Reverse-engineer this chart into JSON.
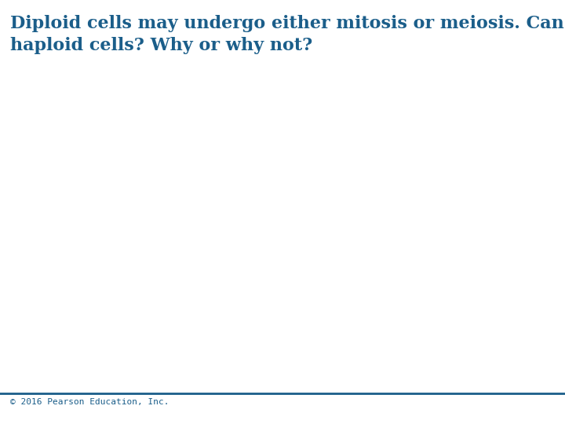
{
  "main_text_line1": "Diploid cells may undergo either mitosis or meiosis. Can",
  "main_text_line2": "haploid cells? Why or why not?",
  "footer_text": "© 2016 Pearson Education, Inc.",
  "text_color": "#1b5e8a",
  "background_color": "#ffffff",
  "footer_line_color": "#1b5e8a",
  "main_font_size": 16,
  "footer_font_size": 8,
  "footer_line_thickness": 2.0
}
